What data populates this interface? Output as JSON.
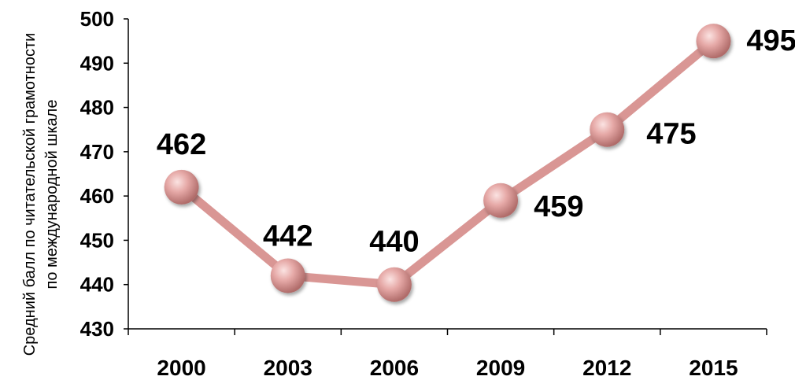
{
  "chart_data": {
    "type": "line",
    "title": "",
    "xlabel": "",
    "ylabel_lines": [
      "Средний балл по читательской  грамотности",
      "по международной шкале"
    ],
    "categories": [
      "2000",
      "2003",
      "2006",
      "2009",
      "2012",
      "2015"
    ],
    "series": [
      {
        "values": [
          462,
          442,
          440,
          459,
          475,
          495
        ]
      }
    ],
    "data_labels": [
      "462",
      "442",
      "440",
      "459",
      "475",
      "495"
    ],
    "yticks": [
      "430",
      "440",
      "450",
      "460",
      "470",
      "480",
      "490",
      "500"
    ],
    "ylim": [
      430,
      500
    ],
    "grid": false,
    "line_color": "#d99694",
    "marker_color": "#e6a9a7"
  }
}
